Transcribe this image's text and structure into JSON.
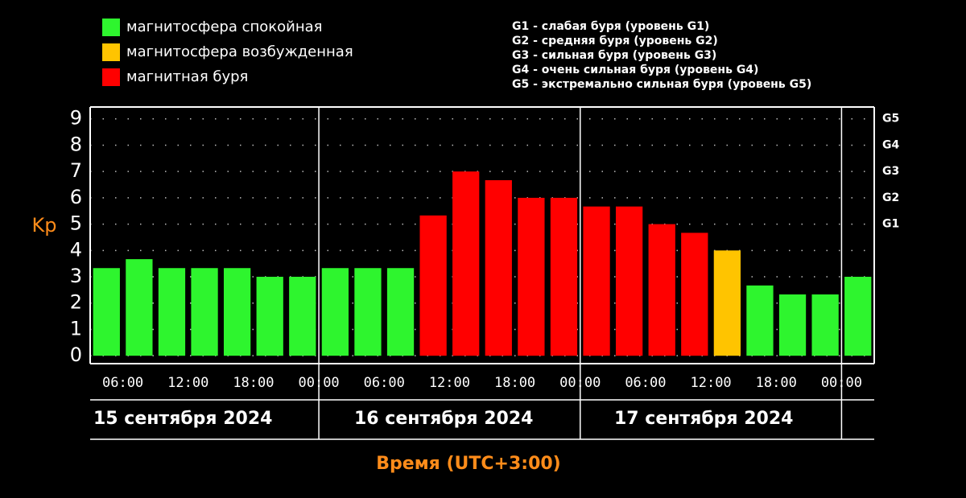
{
  "chart_data": {
    "type": "bar",
    "ylabel": "Kp",
    "xlabel": "Время (UTC+3:00)",
    "legend": [
      {
        "name": "магнитосфера спокойная",
        "color": "#2ef52e"
      },
      {
        "name": "магнитосфера возбужденная",
        "color": "#ffc400"
      },
      {
        "name": "магнитная буря",
        "color": "#ff0000"
      }
    ],
    "storm_levels": [
      "G1 - слабая буря (уровень G1)",
      "G2 - средняя буря (уровень G2)",
      "G3 - сильная буря (уровень G3)",
      "G4 - очень сильная буря (уровень G4)",
      "G5 - экстремально сильная буря (уровень G5)"
    ],
    "values": [
      3.33,
      3.67,
      3.33,
      3.33,
      3.33,
      3,
      3,
      3.33,
      3.33,
      3.33,
      5.33,
      7,
      6.67,
      6,
      6,
      5.67,
      5.67,
      5,
      4.67,
      4,
      2.67,
      2.33,
      2.33,
      3
    ],
    "colors": [
      "#2ef52e",
      "#2ef52e",
      "#2ef52e",
      "#2ef52e",
      "#2ef52e",
      "#2ef52e",
      "#2ef52e",
      "#2ef52e",
      "#2ef52e",
      "#2ef52e",
      "#ff0000",
      "#ff0000",
      "#ff0000",
      "#ff0000",
      "#ff0000",
      "#ff0000",
      "#ff0000",
      "#ff0000",
      "#ff0000",
      "#ffc400",
      "#2ef52e",
      "#2ef52e",
      "#2ef52e",
      "#2ef52e"
    ],
    "xlim": [
      3,
      75
    ],
    "xticks": [
      {
        "value": 6,
        "label": "06:00"
      },
      {
        "value": 12,
        "label": "12:00"
      },
      {
        "value": 18,
        "label": "18:00"
      },
      {
        "value": 24,
        "label": "00:00"
      },
      {
        "value": 30,
        "label": "06:00"
      },
      {
        "value": 36,
        "label": "12:00"
      },
      {
        "value": 42,
        "label": "18:00"
      },
      {
        "value": 48,
        "label": "00:00"
      },
      {
        "value": 54,
        "label": "06:00"
      },
      {
        "value": 60,
        "label": "12:00"
      },
      {
        "value": 66,
        "label": "18:00"
      },
      {
        "value": 72,
        "label": "00:00"
      }
    ],
    "ylim": [
      -0.3,
      9.45
    ],
    "yticks": [
      0,
      1,
      2,
      3,
      4,
      5,
      6,
      7,
      8,
      9
    ],
    "y2lim": [
      -0.3,
      9.45
    ],
    "y2ticks": [
      {
        "value": 5,
        "label": "G1"
      },
      {
        "value": 6,
        "label": "G2"
      },
      {
        "value": 7,
        "label": "G3"
      },
      {
        "value": 8,
        "label": "G4"
      },
      {
        "value": 9,
        "label": "G5"
      }
    ],
    "days": [
      "15 сентября 2024",
      "16 сентября 2024",
      "17 сентября 2024"
    ],
    "grid": true
  }
}
